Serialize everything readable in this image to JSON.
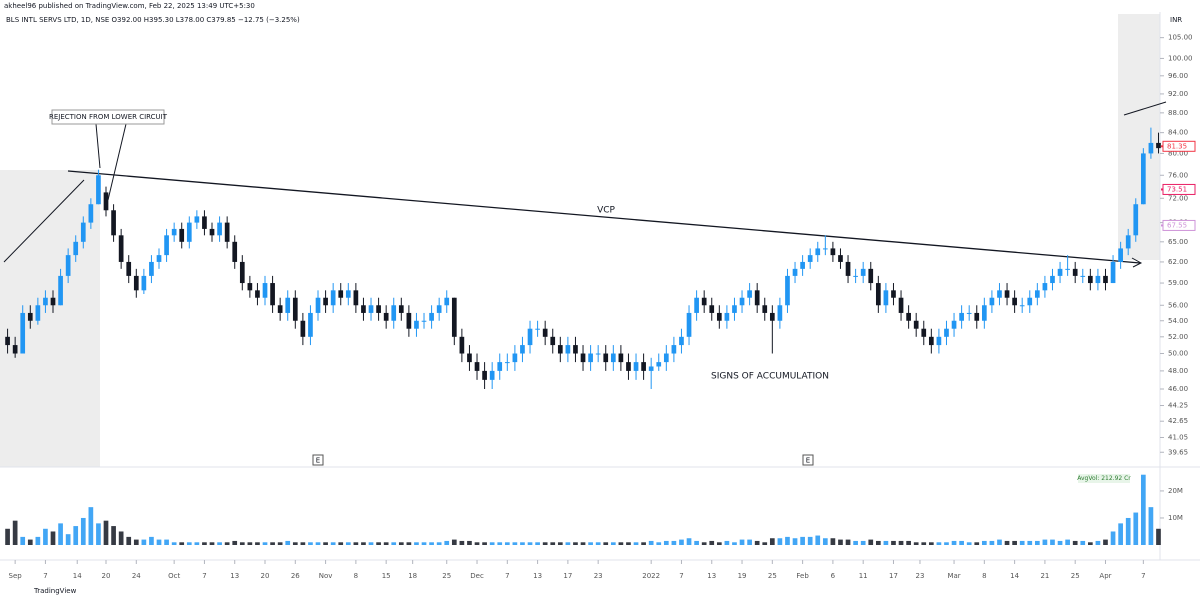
{
  "chart_data": {
    "type": "candlestick",
    "header": "akheel96 published on TradingView.com, Feb 22, 2025 13:49 UTC+5:30",
    "title": "BLS INTL SERVS LTD, 1D, NSE  O392.00 H395.30 L378.00 C379.85 −12.75 (−3.25%)",
    "currency": "INR",
    "footer": "TradingView",
    "annotations": {
      "vcp": "VCP",
      "accumulation": "SIGNS OF ACCUMULATION",
      "rejection": "REJECTION FROM LOWER CIRCUIT",
      "avg_volume": "AvgVol: 212.92 Cr"
    },
    "events": [
      "E",
      "E"
    ],
    "log_scale": true,
    "up_color": "#2196f3",
    "down_color": "#131722",
    "ylim": [
      38.3,
      111
    ],
    "yticks": [
      {
        "value": 105,
        "label": "105.00"
      },
      {
        "value": 100,
        "label": "100.00"
      },
      {
        "value": 96,
        "label": "96.00"
      },
      {
        "value": 92,
        "label": "92.00"
      },
      {
        "value": 88,
        "label": "88.00"
      },
      {
        "value": 84,
        "label": "84.00"
      },
      {
        "value": 80,
        "label": "80.00"
      },
      {
        "value": 76,
        "label": "76.00"
      },
      {
        "value": 72,
        "label": "72.00"
      },
      {
        "value": 68,
        "label": "68.00"
      },
      {
        "value": 65,
        "label": "65.00"
      },
      {
        "value": 62,
        "label": "62.00"
      },
      {
        "value": 59,
        "label": "59.00"
      },
      {
        "value": 56,
        "label": "56.00"
      },
      {
        "value": 54,
        "label": "54.00"
      },
      {
        "value": 52,
        "label": "52.00"
      },
      {
        "value": 50,
        "label": "50.00"
      },
      {
        "value": 48,
        "label": "48.00"
      },
      {
        "value": 46,
        "label": "46.00"
      },
      {
        "value": 44.25,
        "label": "44.25"
      },
      {
        "value": 42.65,
        "label": "42.65"
      },
      {
        "value": 41.05,
        "label": "41.05"
      },
      {
        "value": 39.65,
        "label": "39.65"
      }
    ],
    "last_labels": [
      {
        "value": 81.35,
        "color": "#f23645"
      },
      {
        "value": 73.51,
        "color": "#e91e63"
      },
      {
        "value": 67.55,
        "color": "#ce93d8"
      }
    ],
    "xlim": [
      -1,
      152.2
    ],
    "xticks": [
      {
        "value": 1,
        "label": "Sep"
      },
      {
        "value": 5,
        "label": "7"
      },
      {
        "value": 9.2,
        "label": "14"
      },
      {
        "value": 13,
        "label": "20"
      },
      {
        "value": 17,
        "label": "24"
      },
      {
        "value": 22,
        "label": "Oct"
      },
      {
        "value": 26,
        "label": "7"
      },
      {
        "value": 30,
        "label": "13"
      },
      {
        "value": 34,
        "label": "20"
      },
      {
        "value": 38,
        "label": "26"
      },
      {
        "value": 42,
        "label": "Nov"
      },
      {
        "value": 46,
        "label": "8"
      },
      {
        "value": 50,
        "label": "15"
      },
      {
        "value": 53.5,
        "label": "18"
      },
      {
        "value": 58,
        "label": "25"
      },
      {
        "value": 62,
        "label": "Dec"
      },
      {
        "value": 66,
        "label": "7"
      },
      {
        "value": 70,
        "label": "13"
      },
      {
        "value": 74,
        "label": "17"
      },
      {
        "value": 78,
        "label": "23"
      },
      {
        "value": 85,
        "label": "2022"
      },
      {
        "value": 89,
        "label": "7"
      },
      {
        "value": 93,
        "label": "13"
      },
      {
        "value": 97,
        "label": "19"
      },
      {
        "value": 101,
        "label": "25"
      },
      {
        "value": 105,
        "label": "Feb"
      },
      {
        "value": 109,
        "label": "6"
      },
      {
        "value": 113,
        "label": "11"
      },
      {
        "value": 117,
        "label": "17"
      },
      {
        "value": 120.5,
        "label": "23"
      },
      {
        "value": 125,
        "label": "Mar"
      },
      {
        "value": 129,
        "label": "8"
      },
      {
        "value": 133,
        "label": "14"
      },
      {
        "value": 137,
        "label": "21"
      },
      {
        "value": 141,
        "label": "25"
      },
      {
        "value": 145,
        "label": "Apr"
      },
      {
        "value": 150,
        "label": "7"
      }
    ],
    "ohlc": [
      [
        52,
        53,
        50,
        51
      ],
      [
        51,
        52,
        49.5,
        50
      ],
      [
        50,
        56,
        50,
        55
      ],
      [
        55,
        56,
        53,
        54
      ],
      [
        54,
        57,
        53.5,
        56
      ],
      [
        56,
        58,
        55,
        57
      ],
      [
        57,
        58,
        55,
        56
      ],
      [
        56,
        61,
        56,
        60
      ],
      [
        60,
        64,
        59,
        63
      ],
      [
        63,
        66,
        62,
        65
      ],
      [
        65,
        69,
        64,
        68
      ],
      [
        68,
        72,
        67,
        71
      ],
      [
        71,
        77,
        71,
        76
      ],
      [
        73,
        74,
        69,
        70
      ],
      [
        70,
        71,
        65,
        66
      ],
      [
        66,
        67,
        61,
        62
      ],
      [
        62,
        63,
        59,
        60
      ],
      [
        60,
        61,
        57,
        58
      ],
      [
        58,
        61,
        57.5,
        60
      ],
      [
        60,
        63,
        59,
        62
      ],
      [
        62,
        64,
        61,
        63
      ],
      [
        63,
        67,
        62,
        66
      ],
      [
        66,
        68,
        65,
        67
      ],
      [
        67,
        68,
        64,
        65
      ],
      [
        65,
        69,
        64,
        68
      ],
      [
        68,
        70,
        67,
        69
      ],
      [
        69,
        70,
        66,
        67
      ],
      [
        67,
        68,
        65,
        66
      ],
      [
        66,
        69,
        65,
        68
      ],
      [
        68,
        69,
        64,
        65
      ],
      [
        65,
        66,
        61,
        62
      ],
      [
        62,
        63,
        58,
        59
      ],
      [
        59,
        60,
        57,
        58
      ],
      [
        58,
        59,
        56,
        57
      ],
      [
        57,
        60,
        56,
        59
      ],
      [
        59,
        60,
        55,
        56
      ],
      [
        56,
        57,
        54,
        55
      ],
      [
        55,
        58,
        54,
        57
      ],
      [
        57,
        58,
        53,
        54
      ],
      [
        54,
        55,
        51,
        52
      ],
      [
        52,
        56,
        51,
        55
      ],
      [
        55,
        58,
        54,
        57
      ],
      [
        57,
        58,
        55,
        56
      ],
      [
        56,
        59,
        55,
        58
      ],
      [
        58,
        59,
        56,
        57
      ],
      [
        57,
        59,
        56,
        58
      ],
      [
        58,
        59,
        55,
        56
      ],
      [
        56,
        57,
        54,
        55
      ],
      [
        55,
        57,
        54,
        56
      ],
      [
        56,
        57,
        54,
        55
      ],
      [
        55,
        56,
        53,
        54
      ],
      [
        54,
        57,
        53,
        56
      ],
      [
        56,
        57,
        54,
        55
      ],
      [
        55,
        56,
        52,
        53
      ],
      [
        53,
        55,
        52,
        54
      ],
      [
        54,
        55,
        53,
        54
      ],
      [
        54,
        56,
        53,
        55
      ],
      [
        55,
        57,
        54,
        56
      ],
      [
        56,
        58,
        55,
        57
      ],
      [
        57,
        57,
        51,
        52
      ],
      [
        52,
        53,
        49,
        50
      ],
      [
        50,
        51,
        48,
        49
      ],
      [
        49,
        50,
        47,
        48
      ],
      [
        48,
        49,
        46,
        47
      ],
      [
        47,
        49,
        46,
        48
      ],
      [
        48,
        50,
        47,
        49
      ],
      [
        49,
        50,
        48,
        49
      ],
      [
        49,
        51,
        48,
        50
      ],
      [
        50,
        52,
        49,
        51
      ],
      [
        51,
        54,
        50,
        53
      ],
      [
        53,
        54,
        52,
        53
      ],
      [
        53,
        54,
        51,
        52
      ],
      [
        52,
        53,
        50,
        51
      ],
      [
        51,
        52,
        49,
        50
      ],
      [
        50,
        52,
        49,
        51
      ],
      [
        51,
        52,
        49,
        50
      ],
      [
        50,
        51,
        48,
        49
      ],
      [
        49,
        51,
        48,
        50
      ],
      [
        50,
        51,
        49,
        50
      ],
      [
        50,
        51,
        48,
        49
      ],
      [
        49,
        51,
        48,
        50
      ],
      [
        50,
        51,
        48,
        49
      ],
      [
        49,
        50,
        47,
        48
      ],
      [
        48,
        50,
        47,
        49
      ],
      [
        49,
        50,
        47,
        48
      ],
      [
        48,
        49.5,
        46,
        48.5
      ],
      [
        48.5,
        50,
        48,
        49
      ],
      [
        49,
        51,
        48,
        50
      ],
      [
        50,
        52,
        49,
        51
      ],
      [
        51,
        53,
        50,
        52
      ],
      [
        52,
        56,
        51,
        55
      ],
      [
        55,
        58,
        54,
        57
      ],
      [
        57,
        58,
        55,
        56
      ],
      [
        56,
        57,
        54,
        55
      ],
      [
        55,
        56,
        53,
        54
      ],
      [
        54,
        56,
        53,
        55
      ],
      [
        55,
        57,
        54,
        56
      ],
      [
        56,
        58,
        55,
        57
      ],
      [
        57,
        59,
        56,
        58
      ],
      [
        58,
        59,
        55,
        56
      ],
      [
        56,
        57,
        54,
        55
      ],
      [
        55,
        56,
        50,
        54
      ],
      [
        54,
        57,
        53,
        56
      ],
      [
        56,
        61,
        55,
        60
      ],
      [
        60,
        62,
        59,
        61
      ],
      [
        61,
        63,
        60,
        62
      ],
      [
        62,
        64,
        61,
        63
      ],
      [
        63,
        65,
        62,
        64
      ],
      [
        64,
        66,
        63,
        64
      ],
      [
        64,
        65,
        62,
        63
      ],
      [
        63,
        64,
        61,
        62
      ],
      [
        62,
        63,
        59,
        60
      ],
      [
        60,
        61,
        59,
        60
      ],
      [
        60,
        62,
        59,
        61
      ],
      [
        61,
        62,
        58,
        59
      ],
      [
        59,
        60,
        55,
        56
      ],
      [
        56,
        59,
        55,
        58
      ],
      [
        58,
        59,
        56,
        57
      ],
      [
        57,
        58,
        54,
        55
      ],
      [
        55,
        56,
        53,
        54
      ],
      [
        54,
        55,
        52,
        53
      ],
      [
        53,
        54,
        51,
        52
      ],
      [
        52,
        53,
        50,
        51
      ],
      [
        51,
        53,
        50,
        52
      ],
      [
        52,
        54,
        51,
        53
      ],
      [
        53,
        55,
        52,
        54
      ],
      [
        54,
        56,
        53,
        55
      ],
      [
        55,
        56,
        54,
        55
      ],
      [
        55,
        56,
        53,
        54
      ],
      [
        54,
        57,
        53,
        56
      ],
      [
        56,
        58,
        55,
        57
      ],
      [
        57,
        59,
        56,
        58
      ],
      [
        58,
        59,
        56,
        57
      ],
      [
        57,
        58,
        55,
        56
      ],
      [
        56,
        57,
        55,
        56
      ],
      [
        56,
        58,
        55,
        57
      ],
      [
        57,
        59,
        56,
        58
      ],
      [
        58,
        60,
        57,
        59
      ],
      [
        59,
        61,
        58,
        60
      ],
      [
        60,
        62,
        59,
        61
      ],
      [
        61,
        63,
        60,
        61
      ],
      [
        61,
        62,
        59,
        60
      ],
      [
        60,
        61,
        59,
        60
      ],
      [
        60,
        61,
        58,
        59
      ],
      [
        59,
        61,
        58,
        60
      ],
      [
        60,
        61,
        58,
        59
      ],
      [
        59,
        63,
        59,
        62
      ],
      [
        62,
        65,
        61,
        64
      ],
      [
        64,
        67,
        63,
        66
      ],
      [
        66,
        72,
        65,
        71
      ],
      [
        71,
        81,
        71,
        80
      ],
      [
        80,
        85,
        79,
        82
      ],
      [
        82,
        84,
        80,
        81
      ]
    ],
    "volume_lim": [
      0,
      27
    ],
    "volume_ticks": [
      {
        "value": 10,
        "label": "10M"
      },
      {
        "value": 20,
        "label": "20M"
      }
    ],
    "volume": [
      6,
      9,
      3,
      2,
      3,
      6,
      5,
      8,
      4,
      7,
      10,
      14,
      8,
      9,
      7,
      5,
      3,
      2,
      2,
      3,
      2,
      2,
      1,
      1,
      1,
      1,
      1,
      1,
      1,
      1,
      1.5,
      1,
      1,
      1,
      1,
      1,
      1,
      1.5,
      1,
      1,
      1,
      1,
      1,
      1,
      1,
      1,
      1,
      1,
      1,
      1,
      1,
      1,
      1,
      1,
      1,
      1,
      1,
      1,
      1.5,
      2,
      1.5,
      1.5,
      1,
      1,
      1,
      1,
      1,
      1,
      1,
      1,
      1,
      1,
      1,
      1,
      1,
      1,
      1,
      1,
      1,
      1,
      1,
      1,
      1,
      1,
      1,
      1.5,
      1,
      1.5,
      1.5,
      2,
      2.5,
      1.5,
      1,
      1.5,
      1,
      1.5,
      1,
      2,
      2,
      1.5,
      1,
      2.5,
      2.5,
      3,
      2.5,
      3,
      3,
      3.5,
      2.5,
      2.5,
      2,
      2,
      1.5,
      1.5,
      2,
      1.5,
      1.5,
      1.5,
      1.5,
      1.5,
      1,
      1,
      1,
      1,
      1,
      1.5,
      1.5,
      1,
      1,
      1.5,
      1.5,
      2,
      1.5,
      1.5,
      1.5,
      1.5,
      1.5,
      2,
      2,
      1.5,
      2,
      1.5,
      1.5,
      1,
      1.5,
      2,
      5,
      8,
      10,
      12,
      26,
      14,
      6
    ]
  }
}
